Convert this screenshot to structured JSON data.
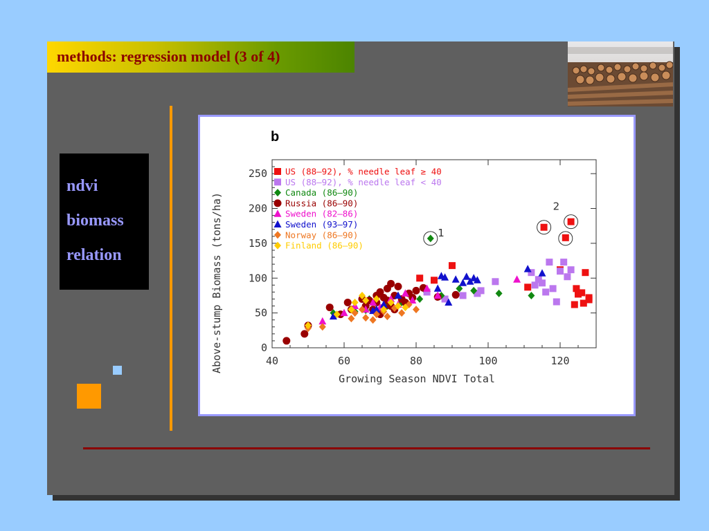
{
  "slide": {
    "title": "methods: regression model (3 of 4)",
    "side_items": [
      "ndvi",
      "biomass",
      "relation"
    ]
  },
  "colors": {
    "background": "#99ccff",
    "slide": "#5f5f5f",
    "title_text": "#8b0000",
    "side_text": "#9999ff",
    "accent_orange": "#ff9900",
    "rule_red": "#8b0000",
    "frame_border": "#9999ff"
  },
  "chart_data": {
    "type": "scatter",
    "panel_label": "b",
    "xlabel": "Growing Season NDVI Total",
    "ylabel": "Above-stump Biomass (tons/ha)",
    "xlim": [
      40,
      130
    ],
    "ylim": [
      0,
      270
    ],
    "xticks": [
      40,
      60,
      80,
      100,
      120
    ],
    "yticks": [
      0,
      50,
      100,
      150,
      200,
      250
    ],
    "legend_position": "top-left",
    "grid": false,
    "annotations": [
      {
        "text": "1",
        "x": 86,
        "y": 160
      },
      {
        "text": "2",
        "x": 118,
        "y": 198
      }
    ],
    "circled_points": [
      {
        "x": 84,
        "y": 157
      },
      {
        "x": 115.5,
        "y": 173
      },
      {
        "x": 123,
        "y": 181
      },
      {
        "x": 121.5,
        "y": 157
      }
    ],
    "series": [
      {
        "name": "US (88–92), % needle leaf ≥ 40",
        "color": "#ee1111",
        "marker": "square",
        "x": [
          81,
          85,
          90,
          111,
          115.5,
          120,
          121.5,
          123,
          124,
          124.5,
          125,
          126,
          126.5,
          127,
          128,
          128
        ],
        "y": [
          100,
          97,
          118,
          87,
          173,
          112,
          158,
          181,
          62,
          85,
          77,
          79,
          64,
          108,
          72,
          69
        ]
      },
      {
        "name": "US (88–92), % needle leaf < 40",
        "color": "#bb77ee",
        "marker": "square",
        "x": [
          83,
          88,
          93,
          97,
          98,
          102,
          112,
          113,
          114,
          115,
          116,
          117,
          118,
          119,
          120,
          121,
          122,
          123
        ],
        "y": [
          80,
          70,
          75,
          78,
          82,
          95,
          108,
          90,
          98,
          93,
          80,
          123,
          85,
          66,
          110,
          123,
          102,
          112
        ]
      },
      {
        "name": "Canada (86–90)",
        "color": "#118811",
        "marker": "diamond",
        "x": [
          57,
          63,
          66,
          67,
          72,
          74,
          76,
          81,
          82,
          84,
          87,
          92,
          96,
          103,
          112
        ],
        "y": [
          50,
          52,
          54,
          70,
          60,
          55,
          65,
          70,
          85,
          157,
          75,
          85,
          82,
          78,
          75
        ]
      },
      {
        "name": "Russia (86–90)",
        "color": "#990000",
        "marker": "circle",
        "x": [
          44,
          49,
          50,
          56,
          59,
          61,
          62,
          65,
          66,
          67,
          68,
          69,
          69,
          70,
          70,
          71,
          71,
          72,
          72,
          73,
          73,
          74,
          74,
          75,
          76,
          77,
          78,
          79,
          80,
          82,
          86,
          91
        ],
        "y": [
          10,
          20,
          32,
          58,
          48,
          65,
          55,
          70,
          60,
          68,
          55,
          75,
          65,
          48,
          80,
          72,
          58,
          85,
          68,
          60,
          92,
          75,
          55,
          88,
          70,
          65,
          78,
          72,
          82,
          86,
          73,
          76
        ]
      },
      {
        "name": "Sweden (82–86)",
        "color": "#ee11cc",
        "marker": "triangle",
        "x": [
          54,
          60,
          63,
          66,
          68,
          70,
          73,
          75,
          77,
          79,
          83,
          86,
          108
        ],
        "y": [
          38,
          50,
          60,
          55,
          65,
          58,
          70,
          62,
          78,
          68,
          85,
          75,
          98
        ]
      },
      {
        "name": "Sweden (93–97)",
        "color": "#1111cc",
        "marker": "triangle",
        "x": [
          57,
          68,
          69,
          71,
          75,
          86,
          87,
          88,
          89,
          91,
          93,
          94,
          95,
          96,
          97,
          111,
          115
        ],
        "y": [
          45,
          53,
          55,
          62,
          75,
          85,
          103,
          101,
          65,
          98,
          93,
          102,
          95,
          100,
          97,
          113,
          107
        ]
      },
      {
        "name": "Norway (86–90)",
        "color": "#ee7722",
        "marker": "diamond",
        "x": [
          50,
          54,
          62,
          63,
          65,
          66,
          68,
          69,
          71,
          72,
          74,
          76,
          78,
          80
        ],
        "y": [
          28,
          30,
          42,
          50,
          55,
          43,
          40,
          48,
          52,
          45,
          57,
          50,
          62,
          55
        ]
      },
      {
        "name": "Finland (86–90)",
        "color": "#ffcc00",
        "marker": "diamond",
        "x": [
          50,
          58,
          62,
          63,
          65,
          66,
          69,
          71,
          73,
          75,
          77
        ],
        "y": [
          32,
          48,
          55,
          65,
          75,
          68,
          70,
          55,
          65,
          60,
          58
        ]
      }
    ]
  }
}
